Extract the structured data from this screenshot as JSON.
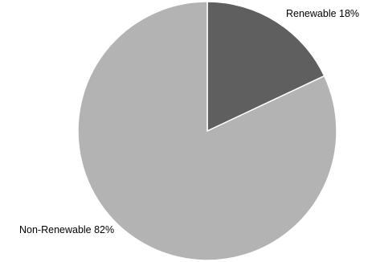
{
  "chart_data": {
    "type": "pie",
    "title": "",
    "slices": [
      {
        "label": "Renewable",
        "value": 18,
        "display": "Renewable 18%",
        "color": "#5f5f5f"
      },
      {
        "label": "Non-Renewable",
        "value": 82,
        "display": "Non-Renewable 82%",
        "color": "#b3b3b3"
      }
    ],
    "start_angle_deg": 0,
    "direction": "clockwise",
    "slice_border_color": "#ffffff",
    "legend": "none"
  }
}
